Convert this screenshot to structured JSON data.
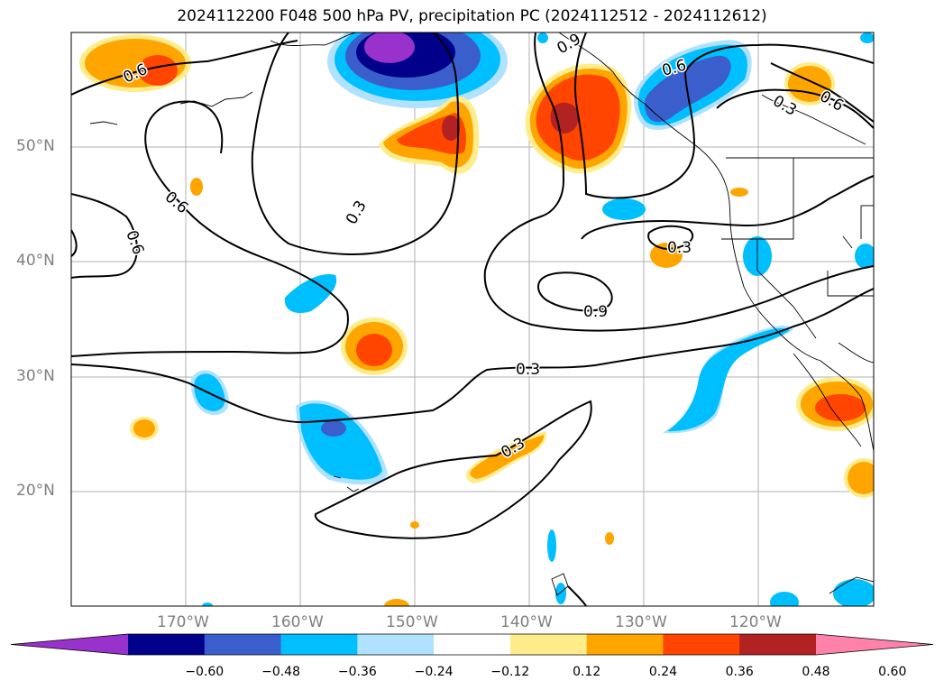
{
  "title": "2024112200 F048 500 hPa PV, precipitation PC (2024112512 - 2024112612)",
  "lat_labels": [
    "50°N",
    "40°N",
    "30°N",
    "20°N"
  ],
  "lon_labels": [
    "170°W",
    "160°W",
    "150°W",
    "140°W",
    "130°W",
    "120°W"
  ],
  "contour_labels": [
    "0.6",
    "0.6",
    "0.6",
    "0.3",
    "0.9",
    "0.3",
    "0.6",
    "0.3",
    "0.9",
    "0.3",
    "0.3",
    "0.6"
  ],
  "colorbar": {
    "ticks": [
      "−0.60",
      "−0.48",
      "−0.36",
      "−0.24",
      "−0.12",
      "0.12",
      "0.24",
      "0.36",
      "0.48",
      "0.60"
    ],
    "colors": [
      "#9932cc",
      "#00008b",
      "#3a5fcd",
      "#00bfff",
      "#b0e2ff",
      "#ffffff",
      "#ffec8b",
      "#ffa500",
      "#ff4500",
      "#b22222",
      "#ff82ab"
    ]
  }
}
